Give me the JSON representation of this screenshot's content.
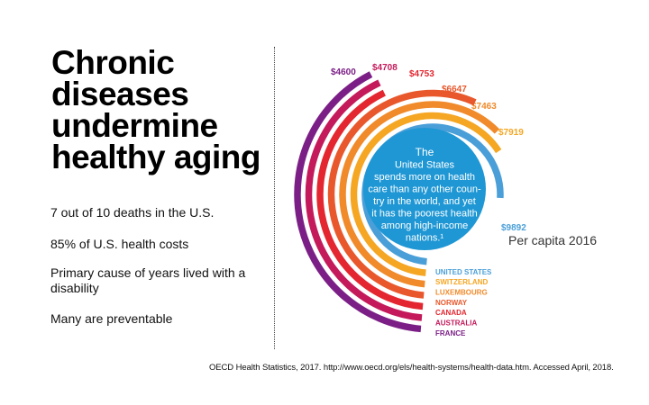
{
  "title_lines": [
    "Chronic",
    "diseases",
    "undermine",
    "healthy aging"
  ],
  "facts": [
    "7 out of 10 deaths in the U.S.",
    "85% of U.S. health costs",
    "Primary cause of years lived with a disability",
    "Many are preventable"
  ],
  "center_text": [
    "The",
    "United States",
    "spends more on health",
    "care than any other coun-",
    "try in the world, and yet",
    "it has the poorest health",
    "among high-income",
    "nations.¹"
  ],
  "per_capita_label": "Per capita 2016",
  "source": "OECD Health Statistics, 2017. http://www.oecd.org/els/health-systems/health-data.htm. Accessed April, 2018.",
  "chart_data": {
    "type": "radial-bar",
    "title": "",
    "unit": "Per capita 2016",
    "categories": [
      "UNITED STATES",
      "SWITZERLAND",
      "LUXEMBOURG",
      "NORWAY",
      "CANADA",
      "AUSTRALIA",
      "FRANCE"
    ],
    "values": [
      9892,
      7919,
      7463,
      6647,
      4753,
      4708,
      4600
    ],
    "value_labels": [
      "$9892",
      "$7919",
      "$7463",
      "$6647",
      "$4753",
      "$4708",
      "$4600"
    ],
    "colors": [
      "#4a9fd8",
      "#f5a623",
      "#f08a2a",
      "#e8582c",
      "#e3262f",
      "#c4195a",
      "#7b1f86"
    ]
  }
}
